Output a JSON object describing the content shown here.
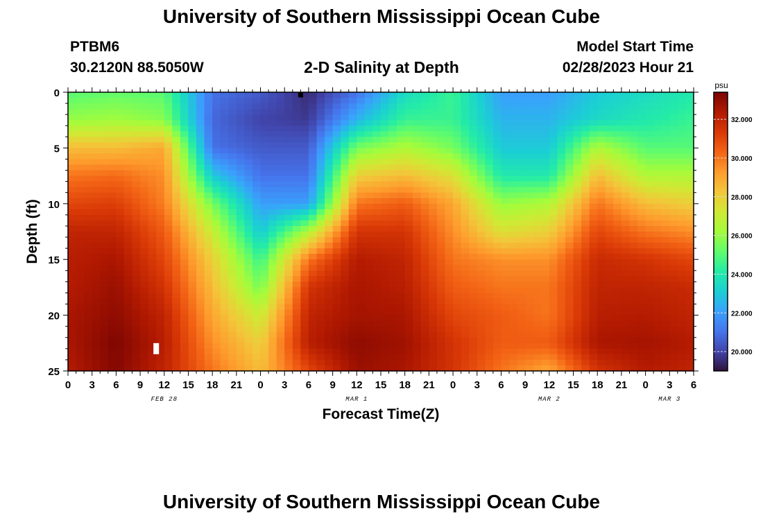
{
  "header": {
    "title": "University of Southern Mississippi Ocean Cube",
    "station_id": "PTBM6",
    "coordinates": "30.2120N  88.5050W",
    "plot_title": "2-D Salinity at Depth",
    "model_start_label": "Model Start Time",
    "model_start_value": "02/28/2023 Hour 21"
  },
  "footer": {
    "title": "University of Southern Mississippi Ocean Cube"
  },
  "chart_data": {
    "type": "heatmap",
    "title": "2-D Salinity at Depth",
    "xlabel": "Forecast Time(Z)",
    "ylabel": "Depth (ft)",
    "x_tick_labels": [
      "0",
      "3",
      "6",
      "9",
      "12",
      "15",
      "18",
      "21",
      "0",
      "3",
      "6",
      "9",
      "12",
      "15",
      "18",
      "21",
      "0",
      "3",
      "6",
      "9",
      "12",
      "15",
      "18",
      "21",
      "0",
      "3",
      "6"
    ],
    "date_labels": [
      {
        "label": "FEB 28",
        "hour": 12
      },
      {
        "label": "MAR 1",
        "hour": 36
      },
      {
        "label": "MAR 2",
        "hour": 60
      },
      {
        "label": "MAR 3",
        "hour": 75
      }
    ],
    "xlim_hours": [
      0,
      78
    ],
    "y_ticks": [
      0,
      5,
      10,
      15,
      20,
      25
    ],
    "ylim_ft": [
      0,
      25
    ],
    "y_inverted": true,
    "colorbar": {
      "unit": "psu",
      "tick_values": [
        20,
        22,
        24,
        26,
        28,
        30,
        32
      ],
      "tick_labels": [
        "20.000",
        "22.000",
        "24.000",
        "26.000",
        "28.000",
        "30.000",
        "32.000"
      ],
      "range": [
        19.0,
        33.4
      ],
      "colors": [
        "#30123b",
        "#4145ab",
        "#4675ed",
        "#39a2fc",
        "#1bcfd4",
        "#24eca6",
        "#61fc6c",
        "#a4fc3b",
        "#d1e834",
        "#f3c63a",
        "#fe9b2d",
        "#f36315",
        "#d93806",
        "#b11901",
        "#7a0402"
      ]
    },
    "salinity_grid": {
      "x_hours": [
        0,
        6,
        12,
        18,
        24,
        30,
        36,
        42,
        48,
        54,
        60,
        66,
        72,
        78
      ],
      "depths_ft": [
        0,
        2.5,
        5,
        7.5,
        10,
        12.5,
        15,
        17.5,
        20,
        22.5,
        25
      ],
      "values": [
        [
          25.0,
          25.2,
          25.0,
          21.0,
          20.5,
          19.5,
          21.0,
          23.5,
          24.5,
          22.0,
          22.0,
          23.0,
          23.5,
          24.0
        ],
        [
          26.0,
          26.2,
          25.8,
          20.8,
          20.0,
          19.8,
          22.5,
          24.5,
          24.5,
          22.5,
          22.5,
          23.5,
          24.0,
          24.5
        ],
        [
          28.5,
          28.5,
          29.0,
          21.0,
          20.5,
          20.5,
          25.5,
          26.5,
          25.5,
          23.0,
          23.0,
          26.5,
          25.0,
          25.0
        ],
        [
          30.0,
          30.2,
          29.5,
          23.0,
          21.0,
          21.0,
          28.0,
          28.5,
          27.5,
          24.0,
          24.0,
          28.5,
          26.5,
          26.5
        ],
        [
          31.0,
          31.2,
          29.8,
          25.5,
          22.0,
          22.0,
          30.0,
          30.5,
          29.0,
          26.0,
          26.5,
          30.0,
          28.5,
          28.0
        ],
        [
          32.0,
          32.0,
          30.5,
          27.0,
          23.0,
          26.5,
          31.5,
          31.5,
          29.5,
          27.5,
          28.0,
          31.0,
          30.0,
          29.5
        ],
        [
          32.2,
          32.5,
          31.0,
          28.0,
          24.5,
          30.0,
          32.3,
          32.0,
          30.0,
          29.5,
          29.5,
          31.8,
          31.5,
          31.0
        ],
        [
          32.3,
          32.8,
          31.5,
          28.5,
          25.5,
          31.5,
          32.5,
          32.2,
          30.5,
          30.0,
          30.0,
          32.0,
          32.0,
          31.8
        ],
        [
          32.5,
          33.0,
          32.0,
          29.0,
          27.0,
          32.0,
          32.6,
          32.5,
          31.0,
          30.5,
          30.0,
          32.2,
          32.3,
          32.0
        ],
        [
          32.5,
          33.3,
          32.2,
          29.5,
          28.0,
          32.2,
          33.0,
          32.7,
          31.5,
          30.5,
          30.5,
          32.5,
          32.6,
          32.3
        ],
        [
          32.3,
          33.2,
          32.0,
          30.0,
          28.5,
          31.0,
          32.8,
          32.5,
          31.5,
          30.0,
          29.0,
          31.5,
          32.3,
          32.0
        ]
      ]
    },
    "markers": [
      {
        "name": "surface-marker",
        "hour": 29,
        "depth_ft": 0.25,
        "color": "#000000"
      },
      {
        "name": "bottom-marker",
        "hour": 11,
        "depth_ft": 23,
        "color": "#ffffff"
      }
    ]
  }
}
